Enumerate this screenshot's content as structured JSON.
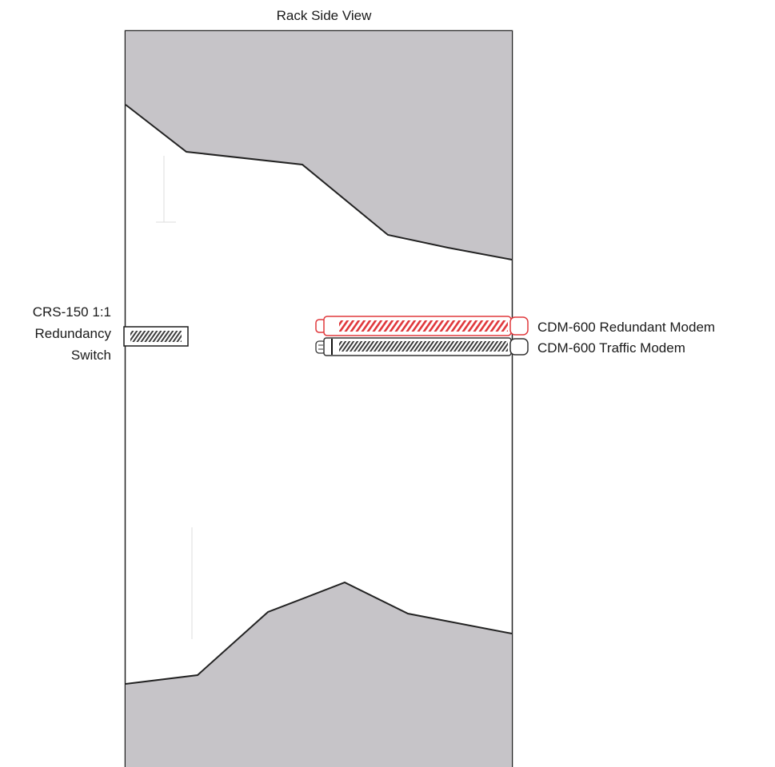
{
  "title": "Rack Side View",
  "switch_label": {
    "line1": "CRS-150 1:1",
    "line2": "Redundancy",
    "line3": "Switch"
  },
  "modems": {
    "redundant": "CDM-600 Redundant Modem",
    "traffic": "CDM-600 Traffic Modem"
  },
  "colors": {
    "rack_fill": "#c6c4c8",
    "redundant_modem": "#e0383c",
    "traffic_modem": "#333333",
    "outline": "#1a1a1a"
  }
}
